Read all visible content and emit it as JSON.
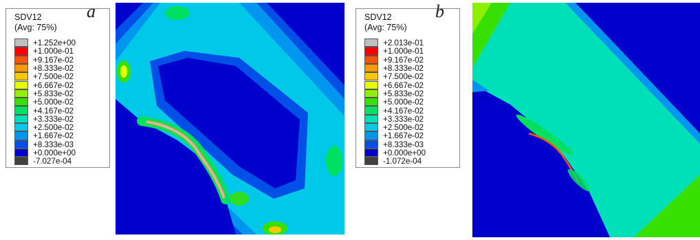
{
  "panels": [
    {
      "tag": "a",
      "legend": {
        "variable": "SDV12",
        "averaging": "(Avg: 75%)",
        "entries": [
          {
            "value": "+1.252e+00",
            "color": "#c0c0c0"
          },
          {
            "value": "+1.000e-01",
            "color": "#ff0000"
          },
          {
            "value": "+9.167e-02",
            "color": "#ff5500"
          },
          {
            "value": "+8.333e-02",
            "color": "#ff9a00"
          },
          {
            "value": "+7.500e-02",
            "color": "#ffc800"
          },
          {
            "value": "+6.667e-02",
            "color": "#e6ff00"
          },
          {
            "value": "+5.833e-02",
            "color": "#8ef000"
          },
          {
            "value": "+5.000e-02",
            "color": "#38e000"
          },
          {
            "value": "+4.167e-02",
            "color": "#00e060"
          },
          {
            "value": "+3.333e-02",
            "color": "#00e0b8"
          },
          {
            "value": "+2.500e-02",
            "color": "#00c8e8"
          },
          {
            "value": "+1.667e-02",
            "color": "#0096f0"
          },
          {
            "value": "+8.333e-03",
            "color": "#0050e8"
          },
          {
            "value": "+0.000e+00",
            "color": "#0000cc"
          },
          {
            "value": "-7.027e-04",
            "color": "#404040"
          }
        ]
      }
    },
    {
      "tag": "b",
      "legend": {
        "variable": "SDV12",
        "averaging": "(Avg: 75%)",
        "entries": [
          {
            "value": "+2.013e-01",
            "color": "#c0c0c0"
          },
          {
            "value": "+1.000e-01",
            "color": "#ff0000"
          },
          {
            "value": "+9.167e-02",
            "color": "#ff5500"
          },
          {
            "value": "+8.333e-02",
            "color": "#ff9a00"
          },
          {
            "value": "+7.500e-02",
            "color": "#ffc800"
          },
          {
            "value": "+6.667e-02",
            "color": "#e6ff00"
          },
          {
            "value": "+5.833e-02",
            "color": "#8ef000"
          },
          {
            "value": "+5.000e-02",
            "color": "#38e000"
          },
          {
            "value": "+4.167e-02",
            "color": "#00e060"
          },
          {
            "value": "+3.333e-02",
            "color": "#00e0b8"
          },
          {
            "value": "+2.500e-02",
            "color": "#00c8e8"
          },
          {
            "value": "+1.667e-02",
            "color": "#0096f0"
          },
          {
            "value": "+8.333e-03",
            "color": "#0050e8"
          },
          {
            "value": "+0.000e+00",
            "color": "#0000cc"
          },
          {
            "value": "-1.072e-04",
            "color": "#404040"
          }
        ]
      }
    }
  ]
}
